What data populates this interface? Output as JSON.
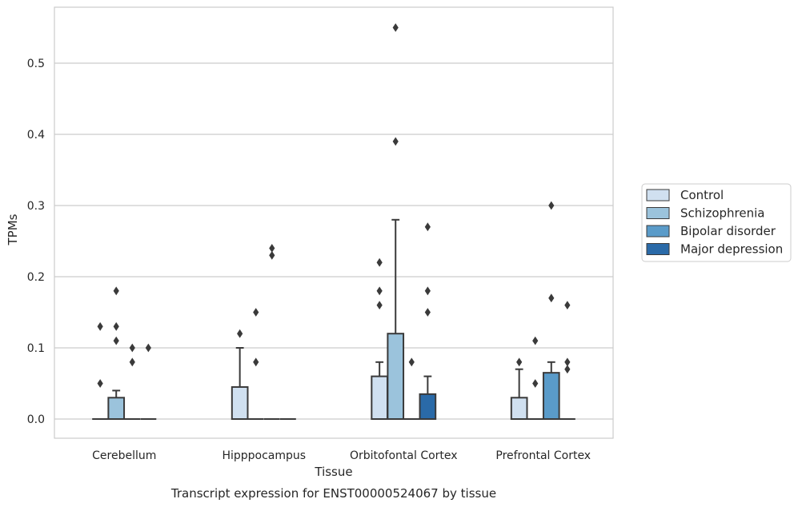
{
  "chart_data": {
    "type": "box",
    "title": "Transcript expression for ENST00000524067 by tissue",
    "xlabel": "Tissue",
    "ylabel": "TPMs",
    "ylim": [
      -0.028,
      0.58
    ],
    "yticks": [
      0.0,
      0.1,
      0.2,
      0.3,
      0.4,
      0.5
    ],
    "ytick_labels": [
      "0.0",
      "0.1",
      "0.2",
      "0.3",
      "0.4",
      "0.5"
    ],
    "categories": [
      "Cerebellum",
      "Hipppocampus",
      "Orbitofontal Cortex",
      "Prefrontal Cortex"
    ],
    "grid": "horizontal",
    "legend_position": "right",
    "series": [
      {
        "name": "Control",
        "color": "#d0e0f0",
        "boxes": [
          {
            "q1": 0,
            "median": 0,
            "q3": 0,
            "whisker_low": 0,
            "whisker_high": 0,
            "outliers": [
              0.05,
              0.13
            ]
          },
          {
            "q1": 0,
            "median": 0,
            "q3": 0.045,
            "whisker_low": 0,
            "whisker_high": 0.1,
            "outliers": [
              0.12
            ]
          },
          {
            "q1": 0,
            "median": 0,
            "q3": 0.06,
            "whisker_low": 0,
            "whisker_high": 0.08,
            "outliers": [
              0.16,
              0.18,
              0.22
            ]
          },
          {
            "q1": 0,
            "median": 0,
            "q3": 0.03,
            "whisker_low": 0,
            "whisker_high": 0.07,
            "outliers": [
              0.08
            ]
          }
        ]
      },
      {
        "name": "Schizophrenia",
        "color": "#9bc3dc",
        "boxes": [
          {
            "q1": 0,
            "median": 0,
            "q3": 0.03,
            "whisker_low": 0,
            "whisker_high": 0.04,
            "outliers": [
              0.11,
              0.13,
              0.18
            ]
          },
          {
            "q1": 0,
            "median": 0,
            "q3": 0,
            "whisker_low": 0,
            "whisker_high": 0,
            "outliers": [
              0.08,
              0.15
            ]
          },
          {
            "q1": 0,
            "median": 0,
            "q3": 0.12,
            "whisker_low": 0,
            "whisker_high": 0.28,
            "outliers": [
              0.39,
              0.55
            ]
          },
          {
            "q1": 0,
            "median": 0,
            "q3": 0,
            "whisker_low": 0,
            "whisker_high": 0,
            "outliers": [
              0.05,
              0.11
            ]
          }
        ]
      },
      {
        "name": "Bipolar disorder",
        "color": "#5a9bc9",
        "boxes": [
          {
            "q1": 0,
            "median": 0,
            "q3": 0,
            "whisker_low": 0,
            "whisker_high": 0,
            "outliers": [
              0.08,
              0.1
            ]
          },
          {
            "q1": 0,
            "median": 0,
            "q3": 0,
            "whisker_low": 0,
            "whisker_high": 0,
            "outliers": [
              0.23,
              0.24
            ]
          },
          {
            "q1": 0,
            "median": 0,
            "q3": 0,
            "whisker_low": 0,
            "whisker_high": 0,
            "outliers": [
              0.08
            ]
          },
          {
            "q1": 0,
            "median": 0,
            "q3": 0.065,
            "whisker_low": 0,
            "whisker_high": 0.08,
            "outliers": [
              0.17,
              0.3
            ]
          }
        ]
      },
      {
        "name": "Major depression",
        "color": "#2a6aa8",
        "boxes": [
          {
            "q1": 0,
            "median": 0,
            "q3": 0,
            "whisker_low": 0,
            "whisker_high": 0,
            "outliers": [
              0.1
            ]
          },
          {
            "q1": 0,
            "median": 0,
            "q3": 0,
            "whisker_low": 0,
            "whisker_high": 0,
            "outliers": []
          },
          {
            "q1": 0,
            "median": 0,
            "q3": 0.035,
            "whisker_low": 0,
            "whisker_high": 0.06,
            "outliers": [
              0.15,
              0.18,
              0.27
            ]
          },
          {
            "q1": 0,
            "median": 0,
            "q3": 0,
            "whisker_low": 0,
            "whisker_high": 0,
            "outliers": [
              0.07,
              0.08,
              0.16
            ]
          }
        ]
      }
    ]
  }
}
